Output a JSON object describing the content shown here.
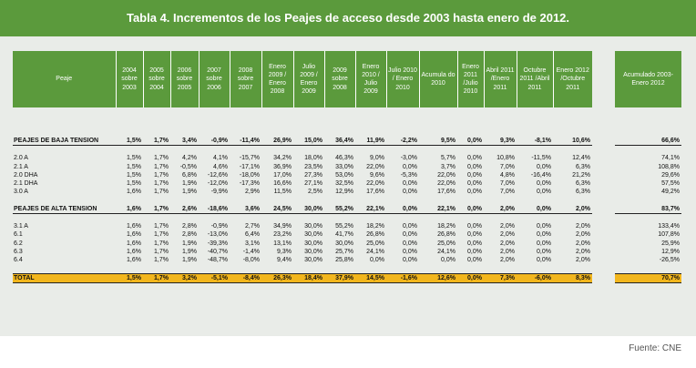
{
  "title": "Tabla 4. Incrementos de los Peajes de acceso desde 2003 hasta enero de 2012.",
  "source": "Fuente: CNE",
  "colors": {
    "header_green": "#5b9a3c",
    "total_yellow": "#f2b61d",
    "panel_gray": "#e9ece8"
  },
  "table": {
    "headers": [
      "Peaje",
      "2004 sobre 2003",
      "2005 sobre 2004",
      "2006 sobre 2005",
      "2007 sobre 2006",
      "2008 sobre 2007",
      "Enero 2009 / Enero 2008",
      "Julio 2009 / Enero 2009",
      "2009 sobre 2008",
      "Enero 2010 / Julio 2009",
      "Julio 2010 / Enero 2010",
      "Acumula do 2010",
      "Enero 2011 /Julio 2010",
      "Abril 2011 /Enero 2011",
      "Octubre 2011 /Abril 2011",
      "Enero 2012 /Octubre 2011"
    ],
    "accum_header": "Acumulado 2003-Enero 2012",
    "rows": [
      {
        "type": "sec",
        "label": "PEAJES DE BAJA TENSION",
        "values": [
          "1,5%",
          "1,7%",
          "3,4%",
          "-0,9%",
          "-11,4%",
          "26,9%",
          "15,0%",
          "36,4%",
          "11,9%",
          "-2,2%",
          "9,5%",
          "0,0%",
          "9,3%",
          "-8,1%",
          "10,6%"
        ],
        "accum": "66,6%"
      },
      {
        "type": "sp"
      },
      {
        "type": "row",
        "label": "2.0 A",
        "values": [
          "1,5%",
          "1,7%",
          "4,2%",
          "4,1%",
          "-15,7%",
          "34,2%",
          "18,0%",
          "46,3%",
          "9,0%",
          "-3,0%",
          "5,7%",
          "0,0%",
          "10,8%",
          "-11,5%",
          "12,4%"
        ],
        "accum": "74,1%"
      },
      {
        "type": "row",
        "label": "2.1 A",
        "values": [
          "1,5%",
          "1,7%",
          "-0,5%",
          "4,6%",
          "-17,1%",
          "36,9%",
          "23,5%",
          "33,0%",
          "22,0%",
          "0,0%",
          "3,7%",
          "0,0%",
          "7,0%",
          "0,0%",
          "6,3%"
        ],
        "accum": "108,8%"
      },
      {
        "type": "row",
        "label": "2.0 DHA",
        "values": [
          "1,5%",
          "1,7%",
          "6,8%",
          "-12,6%",
          "-18,0%",
          "17,0%",
          "27,3%",
          "53,0%",
          "9,6%",
          "-5,3%",
          "22,0%",
          "0,0%",
          "4,8%",
          "-16,4%",
          "21,2%"
        ],
        "accum": "29,6%"
      },
      {
        "type": "row",
        "label": "2.1 DHA",
        "values": [
          "1,5%",
          "1,7%",
          "1,9%",
          "-12,0%",
          "-17,3%",
          "16,6%",
          "27,1%",
          "32,5%",
          "22,0%",
          "0,0%",
          "22,0%",
          "0,0%",
          "7,0%",
          "0,0%",
          "6,3%"
        ],
        "accum": "57,5%"
      },
      {
        "type": "row",
        "label": "3.0 A",
        "values": [
          "1,6%",
          "1,7%",
          "1,9%",
          "-9,9%",
          "2,9%",
          "11,5%",
          "2,5%",
          "12,9%",
          "17,6%",
          "0,0%",
          "17,6%",
          "0,0%",
          "7,0%",
          "0,0%",
          "6,3%"
        ],
        "accum": "49,2%"
      },
      {
        "type": "sp"
      },
      {
        "type": "sec",
        "label": "PEAJES DE ALTA TENSION",
        "values": [
          "1,6%",
          "1,7%",
          "2,6%",
          "-18,6%",
          "3,6%",
          "24,5%",
          "30,0%",
          "55,2%",
          "22,1%",
          "0,0%",
          "22,1%",
          "0,0%",
          "2,0%",
          "0,0%",
          "2,0%"
        ],
        "accum": "83,7%"
      },
      {
        "type": "sp"
      },
      {
        "type": "row",
        "label": "3.1 A",
        "values": [
          "1,6%",
          "1,7%",
          "2,8%",
          "-0,9%",
          "2,7%",
          "34,9%",
          "30,0%",
          "55,2%",
          "18,2%",
          "0,0%",
          "18,2%",
          "0,0%",
          "2,0%",
          "0,0%",
          "2,0%"
        ],
        "accum": "133,4%"
      },
      {
        "type": "row",
        "label": "6.1",
        "values": [
          "1,6%",
          "1,7%",
          "2,8%",
          "-13,0%",
          "6,4%",
          "23,2%",
          "30,0%",
          "41,7%",
          "26,8%",
          "0,0%",
          "26,8%",
          "0,0%",
          "2,0%",
          "0,0%",
          "2,0%"
        ],
        "accum": "107,8%"
      },
      {
        "type": "row",
        "label": "6.2",
        "values": [
          "1,6%",
          "1,7%",
          "1,9%",
          "-39,3%",
          "3,1%",
          "13,1%",
          "30,0%",
          "30,0%",
          "25,0%",
          "0,0%",
          "25,0%",
          "0,0%",
          "2,0%",
          "0,0%",
          "2,0%"
        ],
        "accum": "25,9%"
      },
      {
        "type": "row",
        "label": "6.3",
        "values": [
          "1,6%",
          "1,7%",
          "1,9%",
          "-40,7%",
          "-1,4%",
          "9,3%",
          "30,0%",
          "25,7%",
          "24,1%",
          "0,0%",
          "24,1%",
          "0,0%",
          "2,0%",
          "0,0%",
          "2,0%"
        ],
        "accum": "12,9%"
      },
      {
        "type": "row",
        "label": "6.4",
        "values": [
          "1,6%",
          "1,7%",
          "1,9%",
          "-48,7%",
          "-8,0%",
          "9,4%",
          "30,0%",
          "25,8%",
          "0,0%",
          "0,0%",
          "0,0%",
          "0,0%",
          "2,0%",
          "0,0%",
          "2,0%"
        ],
        "accum": "-26,5%"
      },
      {
        "type": "sp"
      },
      {
        "type": "tot",
        "label": "TOTAL",
        "values": [
          "1,5%",
          "1,7%",
          "3,2%",
          "-5,1%",
          "-8,4%",
          "26,3%",
          "18,4%",
          "37,9%",
          "14,5%",
          "-1,6%",
          "12,6%",
          "0,0%",
          "7,3%",
          "-6,0%",
          "8,3%"
        ],
        "accum": "70,7%"
      }
    ]
  }
}
